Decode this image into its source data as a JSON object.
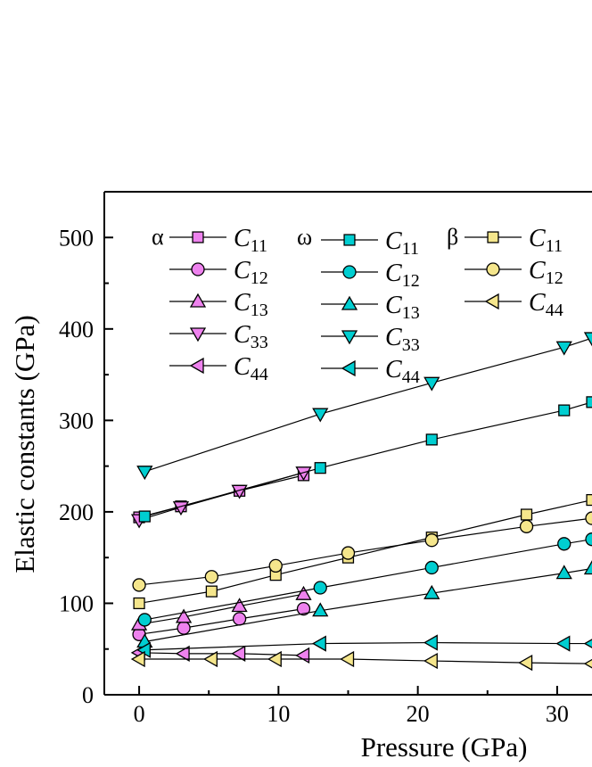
{
  "chart_data": {
    "type": "line",
    "title": "",
    "xlabel": "Pressure (GPa)",
    "ylabel": "Elastic constants (GPa)",
    "xlim": [
      -2.5,
      32.5
    ],
    "ylim": [
      0,
      550
    ],
    "xticks": [
      0,
      10,
      20,
      30
    ],
    "yticks": [
      0,
      100,
      200,
      300,
      400,
      500
    ],
    "grid": false,
    "legend_position": "top-left",
    "colors": {
      "alpha": "#ee82ee",
      "omega": "#00ced1",
      "beta": "#f5e68c"
    },
    "groups": [
      {
        "symbol": "α",
        "color_key": "alpha"
      },
      {
        "symbol": "ω",
        "color_key": "omega"
      },
      {
        "symbol": "β",
        "color_key": "beta"
      }
    ],
    "series": [
      {
        "phase": "α",
        "color_key": "alpha",
        "marker": "square",
        "name": "C11",
        "label_main": "C",
        "label_sub": "11",
        "x": [
          0,
          3,
          7.2,
          11.8
        ],
        "y": [
          194,
          206,
          223,
          240
        ]
      },
      {
        "phase": "α",
        "color_key": "alpha",
        "marker": "circle",
        "name": "C12",
        "label_main": "C",
        "label_sub": "12",
        "x": [
          0,
          3.2,
          7.2,
          11.8
        ],
        "y": [
          66,
          73,
          83,
          94
        ]
      },
      {
        "phase": "α",
        "color_key": "alpha",
        "marker": "triangle-up",
        "name": "C13",
        "label_main": "C",
        "label_sub": "13",
        "x": [
          0,
          3.2,
          7.2,
          11.8
        ],
        "y": [
          77,
          85,
          97,
          110
        ]
      },
      {
        "phase": "α",
        "color_key": "alpha",
        "marker": "triangle-down",
        "name": "C33",
        "label_main": "C",
        "label_sub": "33",
        "x": [
          0,
          3,
          7.2,
          11.8
        ],
        "y": [
          191,
          205,
          223,
          243
        ]
      },
      {
        "phase": "α",
        "color_key": "alpha",
        "marker": "triangle-left",
        "name": "C44",
        "label_main": "C",
        "label_sub": "44",
        "x": [
          0,
          3.2,
          7.2,
          11.8
        ],
        "y": [
          46,
          45,
          45,
          43
        ]
      },
      {
        "phase": "ω",
        "color_key": "omega",
        "marker": "square",
        "name": "C11",
        "label_main": "C",
        "label_sub": "11",
        "x": [
          0.4,
          13,
          21,
          30.5,
          32.5
        ],
        "y": [
          195,
          248,
          279,
          311,
          320
        ]
      },
      {
        "phase": "ω",
        "color_key": "omega",
        "marker": "circle",
        "name": "C12",
        "label_main": "C",
        "label_sub": "12",
        "x": [
          0.4,
          13,
          21,
          30.5,
          32.5
        ],
        "y": [
          82,
          117,
          139,
          165,
          170
        ]
      },
      {
        "phase": "ω",
        "color_key": "omega",
        "marker": "triangle-up",
        "name": "C13",
        "label_main": "C",
        "label_sub": "13",
        "x": [
          0.4,
          13,
          21,
          30.5,
          32.5
        ],
        "y": [
          58,
          92,
          111,
          133,
          138
        ]
      },
      {
        "phase": "ω",
        "color_key": "omega",
        "marker": "triangle-down",
        "name": "C33",
        "label_main": "C",
        "label_sub": "33",
        "x": [
          0.4,
          13,
          21,
          30.5,
          32.5
        ],
        "y": [
          244,
          307,
          341,
          380,
          390
        ]
      },
      {
        "phase": "ω",
        "color_key": "omega",
        "marker": "triangle-left",
        "name": "C44",
        "label_main": "C",
        "label_sub": "44",
        "x": [
          0.4,
          13,
          21,
          30.5,
          32.5
        ],
        "y": [
          49,
          56,
          57,
          56,
          56
        ]
      },
      {
        "phase": "β",
        "color_key": "beta",
        "marker": "square",
        "name": "C11",
        "label_main": "C",
        "label_sub": "11",
        "x": [
          0,
          5.2,
          9.8,
          15,
          21,
          27.8,
          32.5
        ],
        "y": [
          100,
          113,
          131,
          150,
          172,
          197,
          213
        ]
      },
      {
        "phase": "β",
        "color_key": "beta",
        "marker": "circle",
        "name": "C12",
        "label_main": "C",
        "label_sub": "12",
        "x": [
          0,
          5.2,
          9.8,
          15,
          21,
          27.8,
          32.5
        ],
        "y": [
          120,
          129,
          141,
          155,
          169,
          184,
          193
        ]
      },
      {
        "phase": "β",
        "color_key": "beta",
        "marker": "triangle-left",
        "name": "C44",
        "label_main": "C",
        "label_sub": "44",
        "x": [
          0,
          5.2,
          9.8,
          15,
          21,
          27.8,
          32.5
        ],
        "y": [
          39,
          39,
          39,
          39,
          37,
          35,
          34
        ]
      }
    ]
  }
}
